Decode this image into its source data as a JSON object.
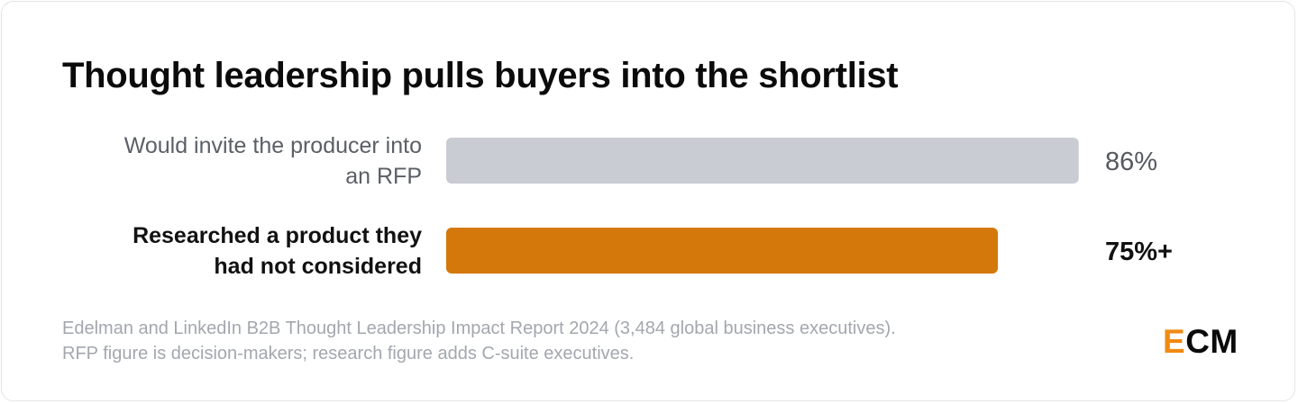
{
  "chart_data": {
    "type": "bar",
    "orientation": "horizontal",
    "title": "Thought leadership pulls buyers into the shortlist",
    "categories": [
      [
        "Would invite the producer into",
        "an RFP"
      ],
      [
        "Researched a product they",
        "had not considered"
      ]
    ],
    "values": [
      86,
      75
    ],
    "value_labels": [
      "86%",
      "75%+"
    ],
    "highlight": [
      false,
      true
    ],
    "colors": {
      "default_bar": "#c9ccd3",
      "highlight_bar": "#d4780c"
    },
    "xlim": [
      0,
      100
    ],
    "grid": false,
    "legend": "none"
  },
  "source": {
    "line1": "Edelman and LinkedIn B2B Thought Leadership Impact Report 2024 (3,484 global business executives).",
    "line2": "RFP figure is decision-makers; research figure adds C-suite executives."
  },
  "logo": {
    "text": "ECM",
    "accent_letter": "E",
    "rest": "CM",
    "accent_color": "#f08a12"
  }
}
